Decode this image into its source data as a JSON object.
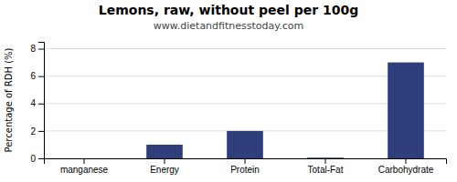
{
  "chart_data": {
    "type": "bar",
    "title": "Lemons, raw, without peel per 100g",
    "subtitle": "www.dietandfitnesstoday.com",
    "categories": [
      "manganese",
      "Energy",
      "Protein",
      "Total-Fat",
      "Carbohydrate"
    ],
    "values": [
      0.0,
      1.0,
      2.0,
      0.05,
      7.0
    ],
    "color": "#2e3f7c",
    "ylabel": "Percentage of RDH (%)",
    "ylim": [
      0,
      8.5
    ],
    "yticks": [
      0,
      2,
      4,
      6,
      8
    ],
    "grid": true
  }
}
